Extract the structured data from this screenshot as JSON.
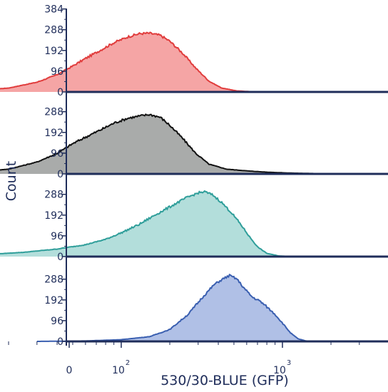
{
  "chart_data": {
    "type": "area",
    "subtype": "stacked-histogram-overlay",
    "xlabel": "530/30-BLUE (GFP)",
    "ylabel": "Count",
    "x_scale": "log (logicle with 0)",
    "x_ticks": [
      {
        "label": "0",
        "value": 0
      },
      {
        "label": "10",
        "exp": "2",
        "value": 100
      },
      {
        "label": "10",
        "exp": "3",
        "value": 1000
      }
    ],
    "y_ticks_top_panel": [
      "0",
      "96",
      "192",
      "288",
      "384"
    ],
    "y_ticks_other_panels": [
      "0",
      "96",
      "192",
      "288"
    ],
    "ylim": [
      0,
      384
    ],
    "grid": false,
    "legend": "none",
    "series": [
      {
        "color": "#e03c3c",
        "fill": "#f5a5a5",
        "points": [
          [
            7,
            2
          ],
          [
            12,
            6
          ],
          [
            20,
            18
          ],
          [
            30,
            45
          ],
          [
            40,
            80
          ],
          [
            50,
            120
          ],
          [
            60,
            155
          ],
          [
            75,
            195
          ],
          [
            90,
            228
          ],
          [
            110,
            255
          ],
          [
            130,
            270
          ],
          [
            150,
            272
          ],
          [
            175,
            262
          ],
          [
            200,
            235
          ],
          [
            240,
            180
          ],
          [
            290,
            110
          ],
          [
            350,
            50
          ],
          [
            420,
            18
          ],
          [
            520,
            5
          ],
          [
            650,
            1
          ],
          [
            900,
            0
          ]
        ]
      },
      {
        "color": "#111111",
        "fill": "#a9abaa",
        "points": [
          [
            7,
            3
          ],
          [
            12,
            8
          ],
          [
            20,
            22
          ],
          [
            30,
            55
          ],
          [
            40,
            95
          ],
          [
            50,
            140
          ],
          [
            60,
            170
          ],
          [
            75,
            205
          ],
          [
            90,
            235
          ],
          [
            110,
            258
          ],
          [
            130,
            268
          ],
          [
            150,
            275
          ],
          [
            175,
            262
          ],
          [
            200,
            225
          ],
          [
            240,
            165
          ],
          [
            290,
            95
          ],
          [
            350,
            45
          ],
          [
            450,
            22
          ],
          [
            600,
            14
          ],
          [
            800,
            8
          ],
          [
            1100,
            4
          ],
          [
            1500,
            2
          ],
          [
            2000,
            0
          ]
        ]
      },
      {
        "color": "#2f9e9a",
        "fill": "#b3dedb",
        "points": [
          [
            7,
            4
          ],
          [
            15,
            10
          ],
          [
            25,
            20
          ],
          [
            40,
            35
          ],
          [
            60,
            55
          ],
          [
            80,
            80
          ],
          [
            100,
            110
          ],
          [
            130,
            150
          ],
          [
            160,
            190
          ],
          [
            200,
            230
          ],
          [
            250,
            270
          ],
          [
            300,
            295
          ],
          [
            330,
            300
          ],
          [
            370,
            285
          ],
          [
            420,
            250
          ],
          [
            480,
            205
          ],
          [
            550,
            150
          ],
          [
            620,
            95
          ],
          [
            700,
            45
          ],
          [
            800,
            15
          ],
          [
            950,
            3
          ],
          [
            1150,
            0
          ]
        ]
      },
      {
        "color": "#3a5fb0",
        "fill": "#b0c0e6",
        "points": [
          [
            30,
            0
          ],
          [
            60,
            2
          ],
          [
            100,
            8
          ],
          [
            150,
            22
          ],
          [
            200,
            55
          ],
          [
            260,
            125
          ],
          [
            320,
            205
          ],
          [
            380,
            265
          ],
          [
            430,
            290
          ],
          [
            470,
            305
          ],
          [
            520,
            290
          ],
          [
            580,
            245
          ],
          [
            650,
            205
          ],
          [
            730,
            185
          ],
          [
            800,
            160
          ],
          [
            900,
            125
          ],
          [
            1000,
            85
          ],
          [
            1120,
            40
          ],
          [
            1250,
            12
          ],
          [
            1400,
            2
          ],
          [
            1600,
            0
          ]
        ]
      }
    ]
  }
}
